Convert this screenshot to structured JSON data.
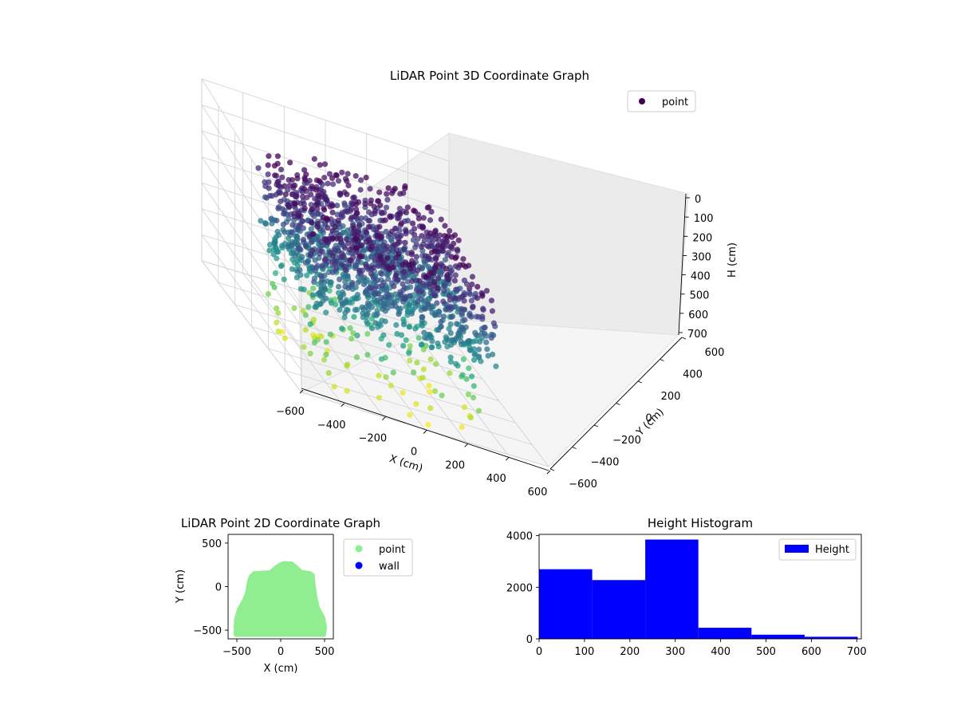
{
  "chart_data": [
    {
      "type": "scatter3d",
      "title": "LiDAR Point 3D Coordinate Graph",
      "xlabel": "X (cm)",
      "ylabel": "Y (cm)",
      "zlabel": "H (cm)",
      "xlim": [
        -600,
        600
      ],
      "ylim": [
        -600,
        600
      ],
      "zlim": [
        0,
        700
      ],
      "z_inverted": true,
      "xticks": [
        -600,
        -400,
        -200,
        0,
        200,
        400,
        600
      ],
      "yticks": [
        -600,
        -400,
        -200,
        0,
        200,
        400,
        600
      ],
      "zticks": [
        0,
        100,
        200,
        300,
        400,
        500,
        600,
        700
      ],
      "colormap": "viridis",
      "color_by": "height",
      "legend": {
        "entries": [
          "point"
        ],
        "position": "upper-right",
        "marker_color": "#440154"
      },
      "grid": true,
      "series": [
        {
          "name": "point",
          "point_count_approx": 9700
        }
      ]
    },
    {
      "type": "scatter",
      "title": "LiDAR Point 2D Coordinate Graph",
      "xlabel": "X (cm)",
      "ylabel": "Y (cm)",
      "xlim": [
        -600,
        600
      ],
      "ylim": [
        -600,
        600
      ],
      "xticks": [
        -500,
        0,
        500
      ],
      "yticks": [
        -500,
        0,
        500
      ],
      "legend": {
        "entries": [
          "point",
          "wall"
        ],
        "position": "outside-right"
      },
      "series": [
        {
          "name": "point",
          "color": "#90ee90",
          "outline": [
            [
              -510,
              -545
            ],
            [
              -505,
              -380
            ],
            [
              -470,
              -260
            ],
            [
              -420,
              -170
            ],
            [
              -380,
              -80
            ],
            [
              -360,
              40
            ],
            [
              -340,
              110
            ],
            [
              -300,
              150
            ],
            [
              -120,
              160
            ],
            [
              -80,
              190
            ],
            [
              -60,
              210
            ],
            [
              -10,
              245
            ],
            [
              30,
              265
            ],
            [
              120,
              262
            ],
            [
              180,
              215
            ],
            [
              230,
              165
            ],
            [
              330,
              150
            ],
            [
              360,
              130
            ],
            [
              370,
              20
            ],
            [
              390,
              -120
            ],
            [
              420,
              -250
            ],
            [
              480,
              -360
            ],
            [
              500,
              -470
            ],
            [
              490,
              -550
            ],
            [
              -510,
              -550
            ]
          ]
        },
        {
          "name": "wall",
          "color": "#0000ff",
          "points": []
        }
      ]
    },
    {
      "type": "histogram",
      "title": "Height Histogram",
      "bin_edges": [
        0,
        117,
        234,
        351,
        468,
        585,
        702
      ],
      "values": [
        2700,
        2280,
        3850,
        430,
        160,
        80
      ],
      "xlim": [
        0,
        710
      ],
      "ylim": [
        0,
        4050
      ],
      "xticks": [
        0,
        100,
        200,
        300,
        400,
        500,
        600,
        700
      ],
      "yticks": [
        0,
        2000,
        4000
      ],
      "color": "#0000ff",
      "legend": {
        "entries": [
          "Height"
        ],
        "position": "upper-right"
      },
      "series": [
        {
          "name": "Height"
        }
      ]
    }
  ]
}
